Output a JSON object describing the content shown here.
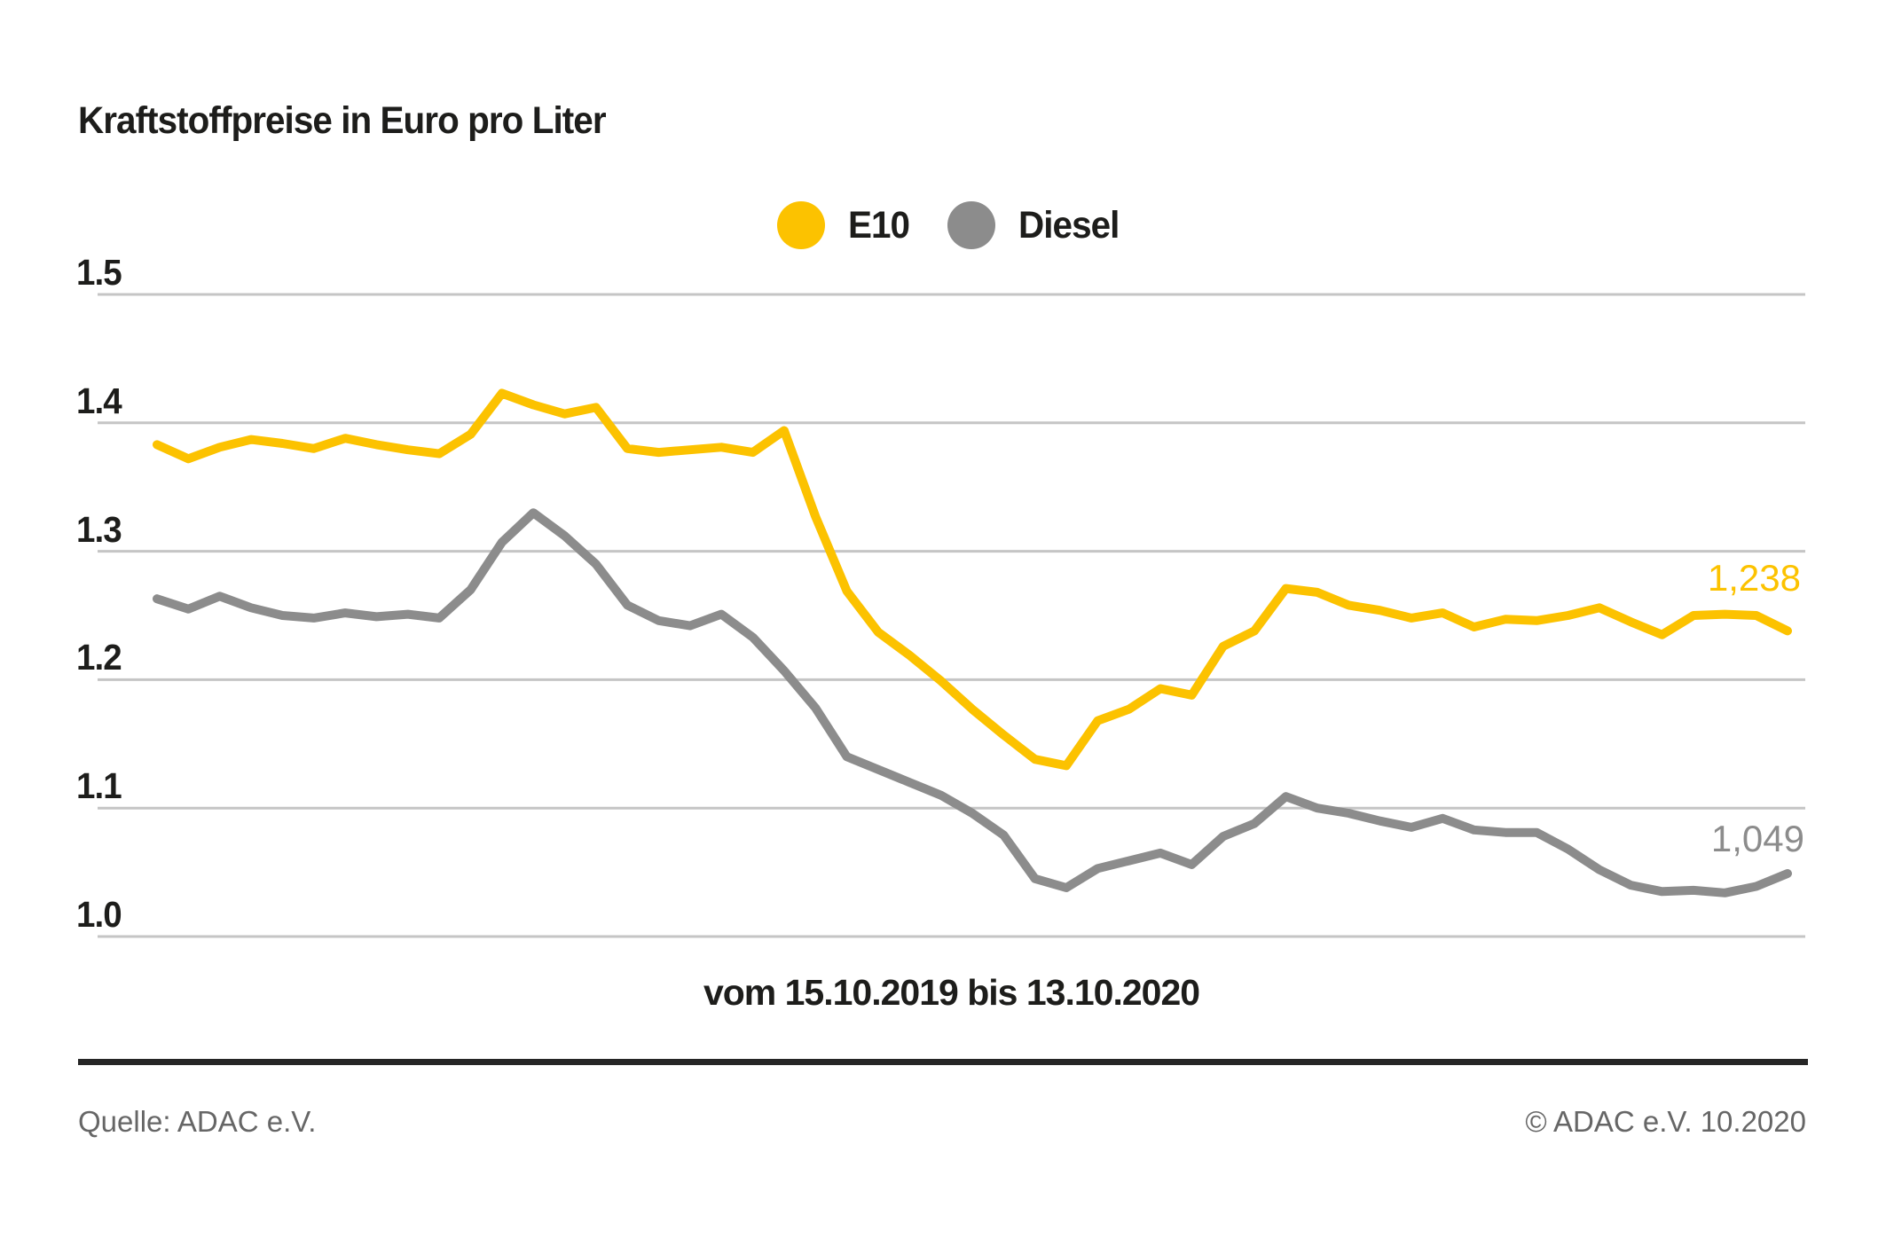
{
  "title": "Kraftstoffpreise in Euro pro Liter",
  "footer": {
    "source": "Quelle: ADAC e.V.",
    "copyright": "© ADAC e.V. 10.2020"
  },
  "colors": {
    "e10": "#FCC200",
    "diesel": "#8C8C8C",
    "grid": "#C5C5C5",
    "text": "#1D1D1B",
    "footer_text": "#666666",
    "rule": "#262626"
  },
  "chart_data": {
    "type": "line",
    "title": "Kraftstoffpreise in Euro pro Liter",
    "xlabel": "vom 15.10.2019 bis 13.10.2020",
    "ylabel": "Euro pro Liter",
    "ylim": [
      1.0,
      1.5
    ],
    "yticks": [
      "1.5",
      "1.4",
      "1.3",
      "1.2",
      "1.1",
      "1.0"
    ],
    "grid": "horizontal",
    "legend_position": "top-center",
    "x_range": [
      "15.10.2019",
      "13.10.2020"
    ],
    "x_unit": "week",
    "series": [
      {
        "name": "E10",
        "color": "#FCC200",
        "end_label": "1,238",
        "end_value": 1.238,
        "values": [
          1.383,
          1.372,
          1.381,
          1.387,
          1.384,
          1.38,
          1.388,
          1.383,
          1.379,
          1.376,
          1.391,
          1.423,
          1.414,
          1.407,
          1.412,
          1.38,
          1.377,
          1.379,
          1.381,
          1.377,
          1.394,
          1.327,
          1.269,
          1.237,
          1.219,
          1.199,
          1.177,
          1.157,
          1.138,
          1.133,
          1.168,
          1.177,
          1.193,
          1.188,
          1.226,
          1.238,
          1.271,
          1.268,
          1.258,
          1.254,
          1.248,
          1.252,
          1.241,
          1.247,
          1.246,
          1.25,
          1.256,
          1.245,
          1.235,
          1.25,
          1.251,
          1.25,
          1.238
        ]
      },
      {
        "name": "Diesel",
        "color": "#8C8C8C",
        "end_label": "1,049",
        "end_value": 1.049,
        "values": [
          1.263,
          1.255,
          1.265,
          1.256,
          1.25,
          1.248,
          1.252,
          1.249,
          1.251,
          1.248,
          1.27,
          1.307,
          1.33,
          1.312,
          1.29,
          1.258,
          1.246,
          1.242,
          1.251,
          1.233,
          1.207,
          1.178,
          1.14,
          1.13,
          1.12,
          1.11,
          1.096,
          1.079,
          1.045,
          1.038,
          1.053,
          1.059,
          1.065,
          1.056,
          1.078,
          1.088,
          1.109,
          1.1,
          1.096,
          1.09,
          1.085,
          1.092,
          1.083,
          1.081,
          1.081,
          1.068,
          1.052,
          1.04,
          1.035,
          1.036,
          1.034,
          1.039,
          1.049
        ]
      }
    ]
  }
}
